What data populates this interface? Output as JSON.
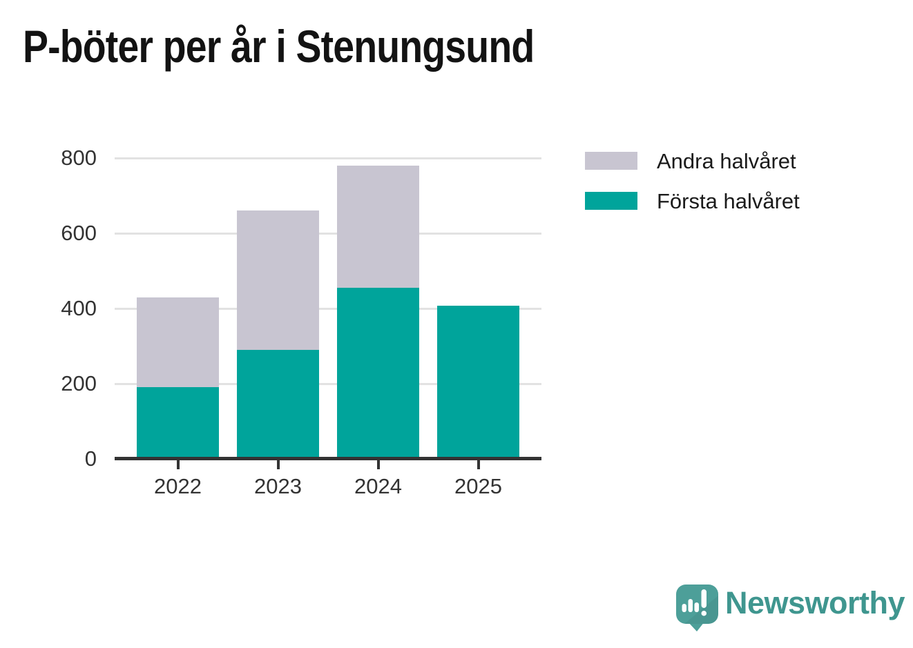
{
  "title": "P-böter per år i Stenungsund",
  "legend": [
    {
      "label": "Andra halvåret",
      "color": "#c8c5d1"
    },
    {
      "label": "Första halvåret",
      "color": "#00a49b"
    }
  ],
  "chart_data": {
    "type": "bar",
    "stacked": true,
    "title": "P-böter per år i Stenungsund",
    "categories": [
      "2022",
      "2023",
      "2024",
      "2025"
    ],
    "series": [
      {
        "name": "Första halvåret",
        "color": "#00a49b",
        "values": [
          190,
          290,
          455,
          408
        ]
      },
      {
        "name": "Andra halvåret",
        "color": "#c8c5d1",
        "values": [
          240,
          370,
          325,
          0
        ]
      }
    ],
    "totals": [
      430,
      660,
      780,
      408
    ],
    "xlabel": "",
    "ylabel": "",
    "ylim": [
      0,
      800
    ],
    "yticks": [
      0,
      200,
      400,
      600,
      800
    ],
    "grid": "horizontal",
    "legend_position": "top-right",
    "colors": {
      "axis": "#333333",
      "gridline": "#e2e2e2",
      "tick_text": "#333333",
      "title_text": "#131313"
    }
  },
  "branding": {
    "logo_text": "Newsworthy",
    "logo_text_color": "#3f968f",
    "logo_mark_color": "#4d9f99"
  }
}
